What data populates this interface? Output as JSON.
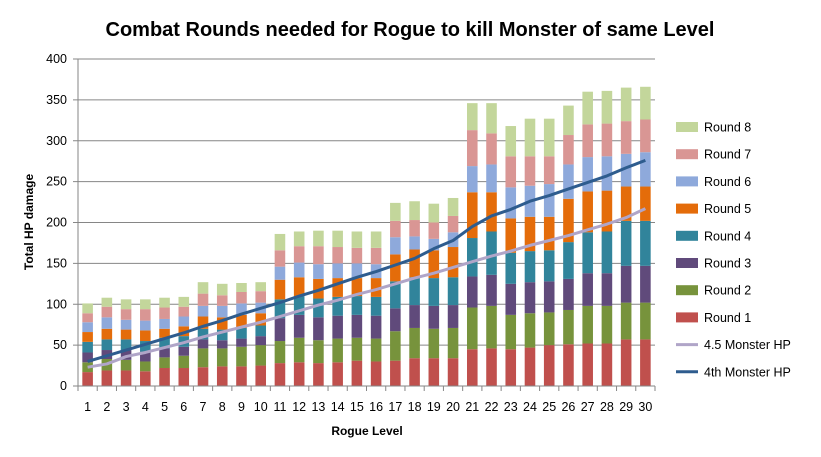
{
  "chart_data": {
    "type": "bar",
    "stacked": true,
    "title": "Combat Rounds needed for Rogue to kill Monster of same Level",
    "xlabel": "Rogue Level",
    "ylabel": "Total HP damage",
    "ylim": [
      0,
      400
    ],
    "yticks": [
      "0",
      "50",
      "100",
      "150",
      "200",
      "250",
      "300",
      "350",
      "400"
    ],
    "categories": [
      "1",
      "2",
      "3",
      "4",
      "5",
      "6",
      "7",
      "8",
      "9",
      "10",
      "11",
      "12",
      "13",
      "14",
      "15",
      "16",
      "17",
      "18",
      "19",
      "20",
      "21",
      "22",
      "23",
      "24",
      "25",
      "26",
      "27",
      "28",
      "29",
      "30"
    ],
    "grid": true,
    "legend_position": "right",
    "series": [
      {
        "name": "Round 1",
        "color": "#c0504d",
        "values": [
          17,
          19,
          19,
          18,
          22,
          22,
          23,
          24,
          24,
          25,
          28,
          29,
          28,
          29,
          31,
          30,
          31,
          34,
          34,
          34,
          45,
          46,
          45,
          47,
          50,
          51,
          52,
          52,
          57,
          57
        ]
      },
      {
        "name": "Round 2",
        "color": "#77933c",
        "values": [
          12,
          14,
          13,
          12,
          13,
          15,
          23,
          22,
          24,
          25,
          27,
          30,
          28,
          29,
          28,
          28,
          36,
          37,
          36,
          37,
          51,
          52,
          42,
          42,
          40,
          42,
          46,
          46,
          45,
          45
        ]
      },
      {
        "name": "Round 3",
        "color": "#604a7b",
        "values": [
          12,
          11,
          12,
          12,
          11,
          11,
          11,
          10,
          10,
          11,
          28,
          28,
          28,
          28,
          28,
          28,
          28,
          28,
          28,
          28,
          38,
          38,
          38,
          38,
          38,
          38,
          40,
          40,
          45,
          45
        ]
      },
      {
        "name": "Round 4",
        "color": "#31849b",
        "values": [
          13,
          13,
          13,
          13,
          13,
          13,
          13,
          13,
          13,
          13,
          23,
          23,
          23,
          23,
          23,
          23,
          33,
          34,
          34,
          34,
          47,
          53,
          38,
          38,
          38,
          45,
          50,
          51,
          55,
          55
        ]
      },
      {
        "name": "Round 5",
        "color": "#e46c0a",
        "values": [
          12,
          13,
          12,
          13,
          11,
          12,
          15,
          15,
          16,
          15,
          24,
          23,
          24,
          23,
          22,
          23,
          33,
          34,
          34,
          37,
          56,
          48,
          42,
          42,
          41,
          53,
          50,
          50,
          42,
          42
        ]
      },
      {
        "name": "Round 6",
        "color": "#8ea9db",
        "values": [
          12,
          14,
          12,
          12,
          12,
          12,
          13,
          14,
          14,
          13,
          16,
          18,
          18,
          18,
          18,
          17,
          21,
          16,
          14,
          18,
          32,
          34,
          38,
          38,
          40,
          42,
          42,
          42,
          40,
          42
        ]
      },
      {
        "name": "Round 7",
        "color": "#d99694",
        "values": [
          11,
          13,
          13,
          14,
          14,
          12,
          15,
          13,
          14,
          14,
          20,
          20,
          22,
          20,
          19,
          20,
          20,
          20,
          20,
          20,
          44,
          38,
          38,
          36,
          34,
          36,
          40,
          40,
          40,
          40
        ]
      },
      {
        "name": "Round 8",
        "color": "#c3d69b",
        "values": [
          12,
          11,
          12,
          12,
          12,
          12,
          14,
          14,
          11,
          11,
          20,
          18,
          19,
          20,
          20,
          20,
          22,
          23,
          23,
          22,
          33,
          37,
          37,
          46,
          46,
          36,
          40,
          40,
          41,
          40
        ]
      }
    ],
    "lines": [
      {
        "name": "4.5 Monster HP",
        "color": "#b0a5c8",
        "values": [
          23,
          27,
          36,
          41,
          47,
          53,
          60,
          66,
          72,
          78,
          85,
          92,
          99,
          105,
          112,
          118,
          125,
          132,
          138,
          145,
          152,
          159,
          165,
          172,
          178,
          184,
          191,
          198,
          206,
          217
        ]
      },
      {
        "name": "4th Monster HP",
        "color": "#2e5c8e",
        "values": [
          30,
          37,
          44,
          51,
          58,
          65,
          73,
          80,
          88,
          95,
          102,
          110,
          117,
          125,
          133,
          140,
          148,
          156,
          168,
          178,
          195,
          208,
          216,
          226,
          233,
          241,
          249,
          257,
          267,
          276
        ]
      }
    ],
    "legend_order": [
      "Round 8",
      "Round 7",
      "Round 6",
      "Round 5",
      "Round 4",
      "Round 3",
      "Round 2",
      "Round 1",
      "4.5 Monster HP",
      "4th Monster HP"
    ]
  }
}
